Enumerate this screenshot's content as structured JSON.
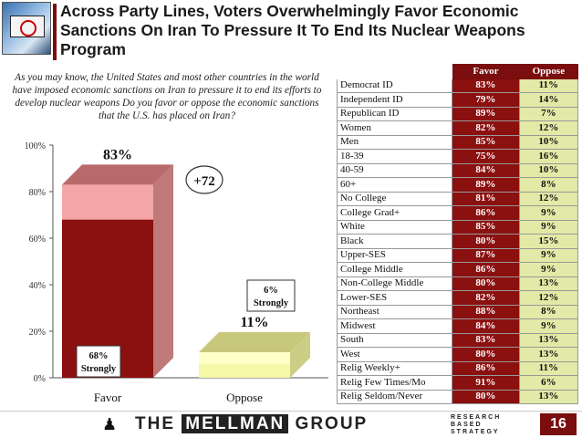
{
  "title": "Across Party Lines, Voters Overwhelmingly Favor Economic Sanctions On Iran To Pressure It To End Its Nuclear Weapons Program",
  "question": "As you may know, the United States and most other countries in the world have imposed economic sanctions on Iran to pressure it to end its efforts to develop nuclear weapons Do you favor or oppose the economic sanctions that the U.S. has placed on Iran?",
  "chart_data": {
    "type": "bar",
    "categories": [
      "Favor",
      "Oppose"
    ],
    "totals": [
      83,
      11
    ],
    "total_labels": [
      "83%",
      "11%"
    ],
    "strongly": [
      68,
      6
    ],
    "strongly_labels": [
      "68%\nStrongly",
      "6%\nStrongly"
    ],
    "net_label": "+72",
    "ylim": [
      0,
      100
    ],
    "yticks": [
      "0%",
      "20%",
      "40%",
      "60%",
      "80%",
      "100%"
    ],
    "colors": {
      "favor_strong": "#8b1010",
      "favor_other": "#f4a6a6",
      "favor_top": "#b86a6a",
      "oppose_strong": "#f7f7a8",
      "oppose_other": "#ffffc8",
      "oppose_top": "#c8c87a"
    }
  },
  "table": {
    "headers": [
      "",
      "Favor",
      "Oppose"
    ],
    "rows": [
      [
        "Democrat ID",
        "83%",
        "11%"
      ],
      [
        "Independent ID",
        "79%",
        "14%"
      ],
      [
        "Republican ID",
        "89%",
        "7%"
      ],
      [
        "Women",
        "82%",
        "12%"
      ],
      [
        "Men",
        "85%",
        "10%"
      ],
      [
        "18-39",
        "75%",
        "16%"
      ],
      [
        "40-59",
        "84%",
        "10%"
      ],
      [
        "60+",
        "89%",
        "8%"
      ],
      [
        "No College",
        "81%",
        "12%"
      ],
      [
        "College Grad+",
        "86%",
        "9%"
      ],
      [
        "White",
        "85%",
        "9%"
      ],
      [
        "Black",
        "80%",
        "15%"
      ],
      [
        "Upper-SES",
        "87%",
        "9%"
      ],
      [
        "College Middle",
        "86%",
        "9%"
      ],
      [
        "Non-College Middle",
        "80%",
        "13%"
      ],
      [
        "Lower-SES",
        "82%",
        "12%"
      ],
      [
        "Northeast",
        "88%",
        "8%"
      ],
      [
        "Midwest",
        "84%",
        "9%"
      ],
      [
        "South",
        "83%",
        "13%"
      ],
      [
        "West",
        "80%",
        "13%"
      ],
      [
        "Relig Weekly+",
        "86%",
        "11%"
      ],
      [
        "Relig Few Times/Mo",
        "91%",
        "6%"
      ],
      [
        "Relig Seldom/Never",
        "80%",
        "13%"
      ]
    ]
  },
  "footer": {
    "brand_prefix": "THE",
    "brand_name": "MELLMAN",
    "brand_suffix": "GROUP",
    "tagline": [
      "RESEARCH",
      "BASED",
      "STRATEGY"
    ],
    "page_number": "16"
  }
}
